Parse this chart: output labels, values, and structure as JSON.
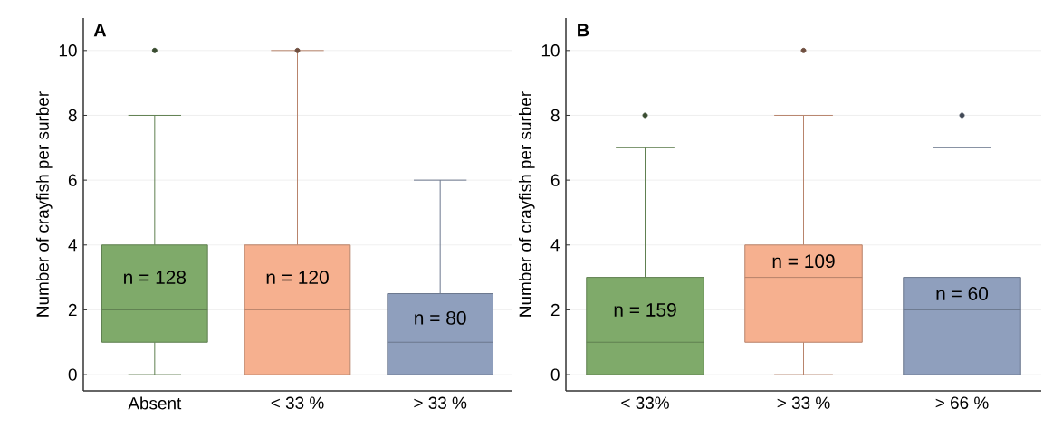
{
  "chart_data": [
    {
      "type": "box",
      "title": "A",
      "ylabel": "Number of crayfish per surber",
      "categories": [
        "Absent",
        "< 33 %",
        "> 33 %"
      ],
      "colors": [
        "#7faa6a",
        "#f6b08f",
        "#8f9fbd"
      ],
      "boxes": [
        {
          "low": 0,
          "q1": 1,
          "median": 2,
          "q3": 4,
          "high": 8,
          "outliers": [
            10
          ]
        },
        {
          "low": 0,
          "q1": 0,
          "median": 2,
          "q3": 4,
          "high": 10,
          "outliers": [
            10
          ]
        },
        {
          "low": 0,
          "q1": 0,
          "median": 1,
          "q3": 2.5,
          "high": 6
        }
      ],
      "ylim": [
        -0.5,
        11
      ],
      "yticks": [
        0,
        2,
        4,
        6,
        8,
        10
      ],
      "grid": "y",
      "annotations": [
        "n = 128",
        "n = 120",
        "n = 80"
      ]
    },
    {
      "type": "box",
      "title": "B",
      "ylabel": "Number of crayfish per surber",
      "categories": [
        "< 33%",
        "> 33 %",
        "> 66 %"
      ],
      "colors": [
        "#7faa6a",
        "#f6b08f",
        "#8f9fbd"
      ],
      "boxes": [
        {
          "low": 0,
          "q1": 0,
          "median": 1,
          "q3": 3,
          "high": 7,
          "outliers": [
            8
          ]
        },
        {
          "low": 0,
          "q1": 1,
          "median": 3,
          "q3": 4,
          "high": 8,
          "outliers": [
            10
          ]
        },
        {
          "low": 0,
          "q1": 0,
          "median": 2,
          "q3": 3,
          "high": 7,
          "outliers": [
            8
          ]
        }
      ],
      "ylim": [
        -0.5,
        11
      ],
      "yticks": [
        0,
        2,
        4,
        6,
        8,
        10
      ],
      "grid": "y",
      "annotations": [
        "n = 159",
        "n = 109",
        "n = 60"
      ]
    }
  ]
}
